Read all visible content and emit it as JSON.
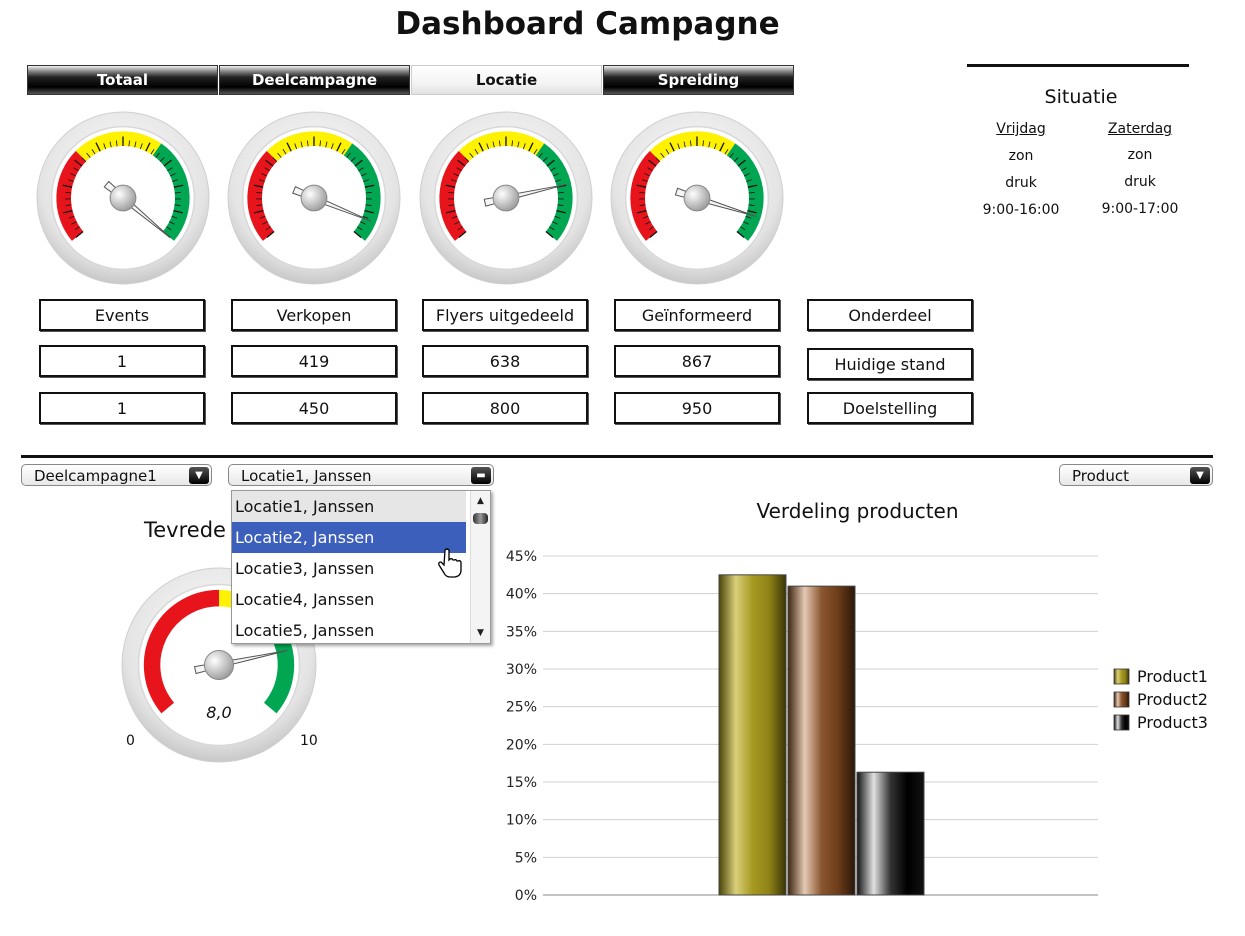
{
  "header": {
    "title": "Dashboard Campagne"
  },
  "tabs": [
    {
      "label": "Totaal",
      "active": false
    },
    {
      "label": "Deelcampagne",
      "active": false
    },
    {
      "label": "Locatie",
      "active": true
    },
    {
      "label": "Spreiding",
      "active": false
    }
  ],
  "gauges": [
    {
      "name": "events",
      "value": 1,
      "target": 1
    },
    {
      "name": "verkopen",
      "value": 419,
      "target": 450
    },
    {
      "name": "flyers",
      "value": 638,
      "target": 800
    },
    {
      "name": "geinformeerd",
      "value": 867,
      "target": 950
    }
  ],
  "metrics": {
    "headers": [
      "Events",
      "Verkopen",
      "Flyers uitgedeeld",
      "Geïnformeerd"
    ],
    "current": [
      "1",
      "419",
      "638",
      "867"
    ],
    "target": [
      "1",
      "450",
      "800",
      "950"
    ],
    "row_labels": {
      "header": "Onderdeel",
      "current": "Huidige stand",
      "target": "Doelstelling"
    }
  },
  "situatie": {
    "title": "Situatie",
    "days": [
      {
        "day": "Vrijdag",
        "weather": "zon",
        "crowd": "druk",
        "hours": "9:00-16:00"
      },
      {
        "day": "Zaterdag",
        "weather": "zon",
        "crowd": "druk",
        "hours": "9:00-17:00"
      }
    ]
  },
  "filters": {
    "deelcampagne": "Deelcampagne1",
    "locatie": "Locatie1, Janssen",
    "product": "Product",
    "locatie_options": [
      "Locatie1, Janssen",
      "Locatie2, Janssen",
      "Locatie3, Janssen",
      "Locatie4, Janssen",
      "Locatie5, Janssen"
    ],
    "highlighted_index": 1
  },
  "satisfaction": {
    "title_visible": "Tevrede",
    "value": 8.0,
    "value_label": "8,0",
    "min_label": "0",
    "max_label": "10"
  },
  "chart_data": {
    "type": "bar",
    "title": "Verdeling producten",
    "series": [
      {
        "name": "Product1",
        "values": [
          42.5
        ]
      },
      {
        "name": "Product2",
        "values": [
          41
        ]
      },
      {
        "name": "Product3",
        "values": [
          16.3
        ]
      }
    ],
    "ylim": [
      0,
      45
    ],
    "yticks": [
      "0%",
      "5%",
      "10%",
      "15%",
      "20%",
      "25%",
      "30%",
      "35%",
      "40%",
      "45%"
    ],
    "legend": "right",
    "colors": {
      "Product1": "#a39421",
      "Product2": "#7a4a22",
      "Product3": "#1a1a1a"
    }
  }
}
